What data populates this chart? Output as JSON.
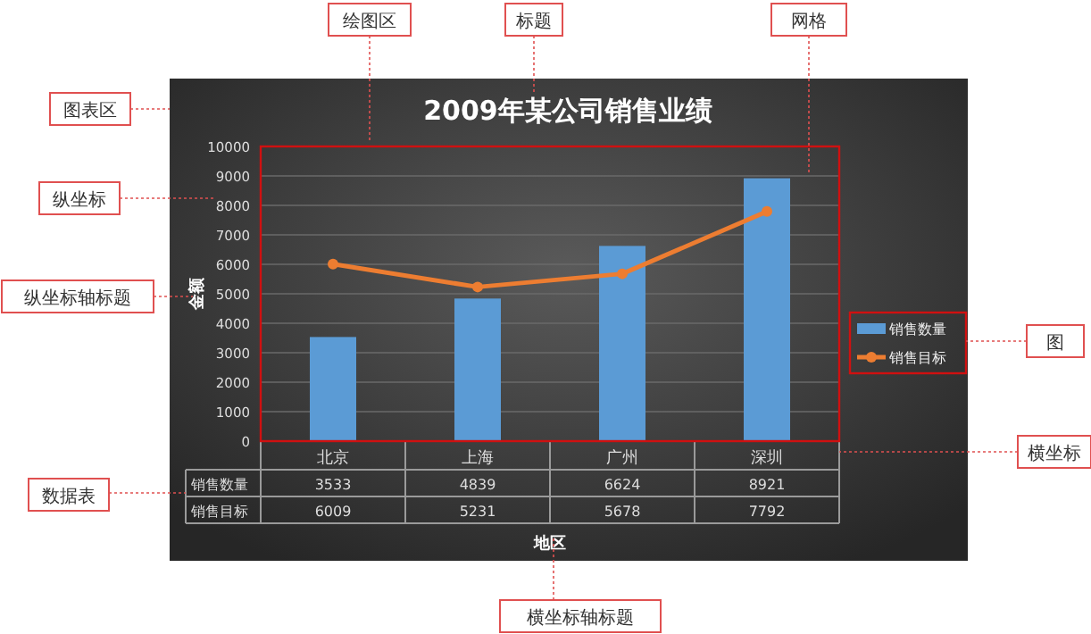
{
  "chart_data": {
    "type": "bar",
    "title": "2009年某公司销售业绩",
    "xlabel": "地区",
    "ylabel": "金额",
    "categories": [
      "北京",
      "上海",
      "广州",
      "深圳"
    ],
    "series": [
      {
        "name": "销售数量",
        "color": "#5b9bd5",
        "values": [
          3533,
          4839,
          6624,
          8921
        ]
      },
      {
        "name": "销售目标",
        "type": "line",
        "color": "#ed7d31",
        "marker": "circle",
        "values": [
          6009,
          5231,
          5678,
          7792
        ]
      }
    ],
    "ylim": [
      0,
      10000
    ],
    "yticks": [
      0,
      1000,
      2000,
      3000,
      4000,
      5000,
      6000,
      7000,
      8000,
      9000,
      10000
    ],
    "grid": "y",
    "legend": "right",
    "data_labels": true,
    "annotations": [
      "绘图区",
      "标题",
      "网格",
      "图表区",
      "纵坐标",
      "纵坐标轴标题",
      "图",
      "横坐标",
      "数据表",
      "横坐标轴标题"
    ]
  }
}
